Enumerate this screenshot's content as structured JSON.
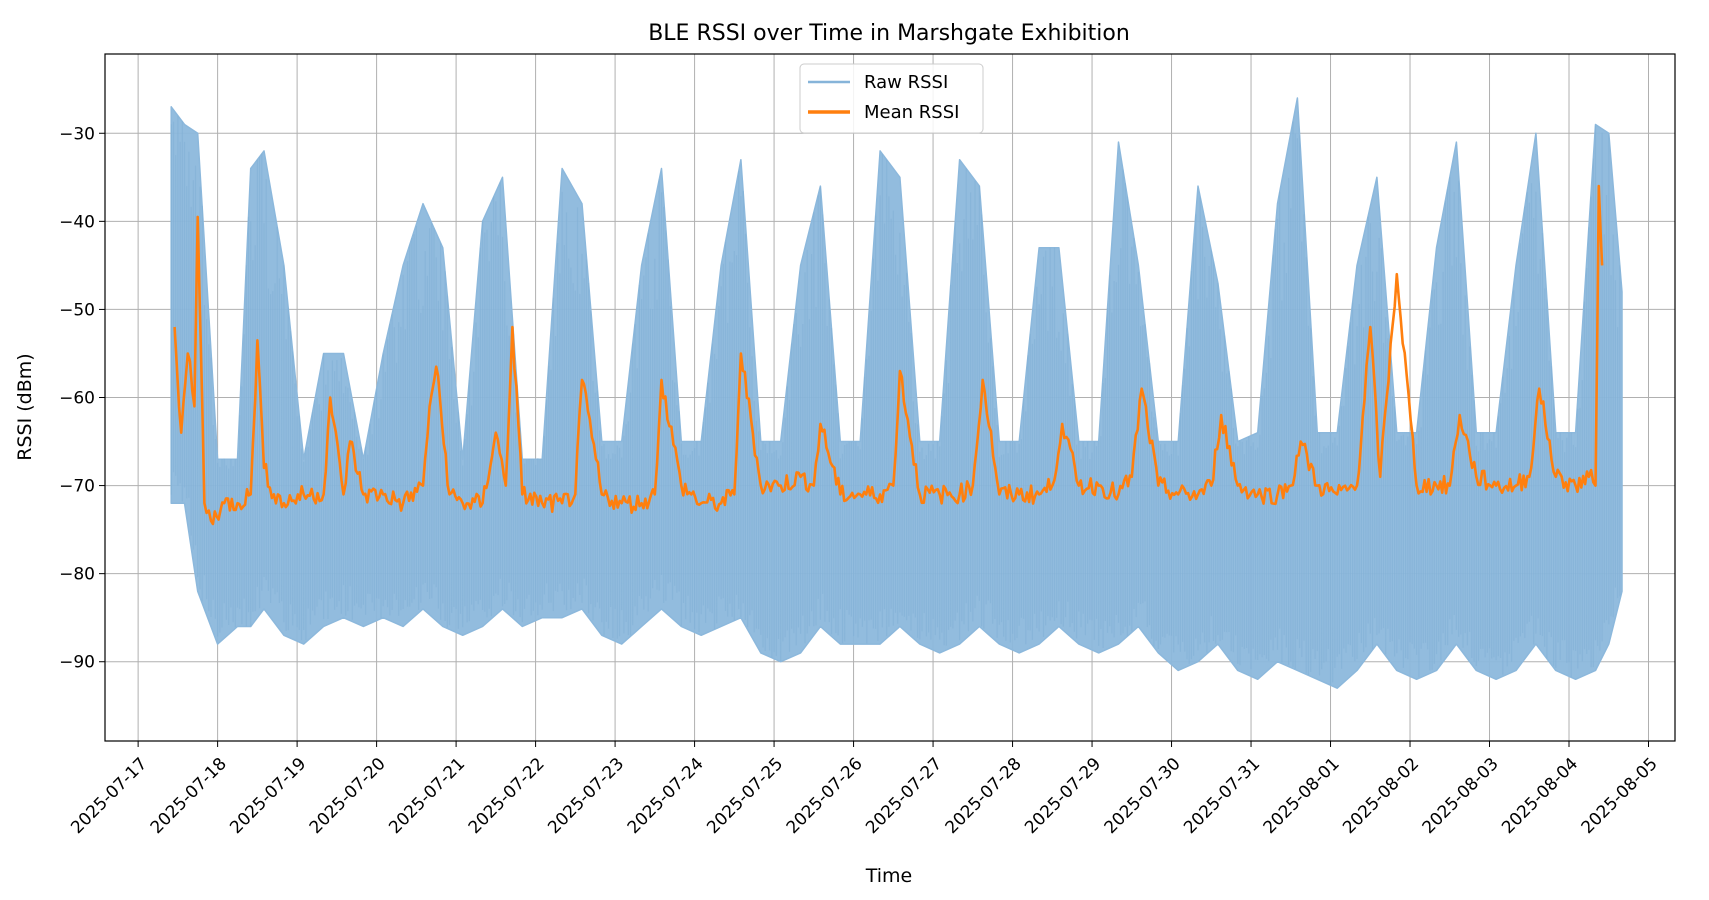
{
  "chart_data": {
    "type": "line",
    "title": "BLE RSSI over Time in Marshgate Exhibition",
    "xlabel": "Time",
    "ylabel": "RSSI (dBm)",
    "x_type": "date",
    "xlim": [
      "2025-07-16T14:00",
      "2025-08-05T08:00"
    ],
    "ylim": [
      -99,
      -21
    ],
    "x_ticks": [
      "2025-07-17",
      "2025-07-18",
      "2025-07-19",
      "2025-07-20",
      "2025-07-21",
      "2025-07-22",
      "2025-07-23",
      "2025-07-24",
      "2025-07-25",
      "2025-07-26",
      "2025-07-27",
      "2025-07-28",
      "2025-07-29",
      "2025-07-30",
      "2025-07-31",
      "2025-08-01",
      "2025-08-02",
      "2025-08-03",
      "2025-08-04",
      "2025-08-05"
    ],
    "y_ticks": [
      -90,
      -80,
      -70,
      -60,
      -50,
      -40,
      -30
    ],
    "y_tick_labels": [
      "−90",
      "−80",
      "−70",
      "−60",
      "−50",
      "−40",
      "−30"
    ],
    "grid": true,
    "legend": {
      "placement": "upper-center"
    },
    "series": [
      {
        "name": "Raw RSSI",
        "color": "#8cb8dc",
        "legend_color": "#86b4d9",
        "style": "envelope",
        "x": [
          "2025-07-17T10:00",
          "2025-07-17T14:00",
          "2025-07-17T18:00",
          "2025-07-18T00:00",
          "2025-07-18T06:00",
          "2025-07-18T10:00",
          "2025-07-18T14:00",
          "2025-07-18T20:00",
          "2025-07-19T02:00",
          "2025-07-19T08:00",
          "2025-07-19T14:00",
          "2025-07-19T20:00",
          "2025-07-20T02:00",
          "2025-07-20T08:00",
          "2025-07-20T14:00",
          "2025-07-20T20:00",
          "2025-07-21T02:00",
          "2025-07-21T08:00",
          "2025-07-21T14:00",
          "2025-07-21T20:00",
          "2025-07-22T02:00",
          "2025-07-22T08:00",
          "2025-07-22T14:00",
          "2025-07-22T20:00",
          "2025-07-23T02:00",
          "2025-07-23T08:00",
          "2025-07-23T14:00",
          "2025-07-23T20:00",
          "2025-07-24T02:00",
          "2025-07-24T08:00",
          "2025-07-24T14:00",
          "2025-07-24T20:00",
          "2025-07-25T02:00",
          "2025-07-25T08:00",
          "2025-07-25T14:00",
          "2025-07-25T20:00",
          "2025-07-26T02:00",
          "2025-07-26T08:00",
          "2025-07-26T14:00",
          "2025-07-26T20:00",
          "2025-07-27T02:00",
          "2025-07-27T08:00",
          "2025-07-27T14:00",
          "2025-07-27T20:00",
          "2025-07-28T02:00",
          "2025-07-28T08:00",
          "2025-07-28T14:00",
          "2025-07-28T20:00",
          "2025-07-29T02:00",
          "2025-07-29T08:00",
          "2025-07-29T14:00",
          "2025-07-29T20:00",
          "2025-07-30T02:00",
          "2025-07-30T08:00",
          "2025-07-30T14:00",
          "2025-07-30T20:00",
          "2025-07-31T02:00",
          "2025-07-31T08:00",
          "2025-07-31T14:00",
          "2025-07-31T20:00",
          "2025-08-01T02:00",
          "2025-08-01T08:00",
          "2025-08-01T14:00",
          "2025-08-01T20:00",
          "2025-08-02T02:00",
          "2025-08-02T08:00",
          "2025-08-02T14:00",
          "2025-08-02T20:00",
          "2025-08-03T02:00",
          "2025-08-03T08:00",
          "2025-08-03T14:00",
          "2025-08-03T20:00",
          "2025-08-04T02:00",
          "2025-08-04T08:00",
          "2025-08-04T12:00",
          "2025-08-04T16:00"
        ],
        "upper": [
          -27,
          -29,
          -30,
          -67,
          -67,
          -34,
          -32,
          -45,
          -67,
          -55,
          -55,
          -67,
          -55,
          -45,
          -38,
          -43,
          -67,
          -40,
          -35,
          -67,
          -67,
          -34,
          -38,
          -65,
          -65,
          -45,
          -34,
          -65,
          -65,
          -45,
          -33,
          -65,
          -65,
          -45,
          -36,
          -65,
          -65,
          -32,
          -35,
          -65,
          -65,
          -33,
          -36,
          -65,
          -65,
          -43,
          -43,
          -65,
          -65,
          -31,
          -45,
          -65,
          -65,
          -36,
          -47,
          -65,
          -64,
          -38,
          -26,
          -64,
          -64,
          -45,
          -35,
          -64,
          -64,
          -43,
          -31,
          -64,
          -64,
          -45,
          -30,
          -64,
          -64,
          -29,
          -30,
          -48
        ],
        "lower": [
          -72,
          -72,
          -82,
          -88,
          -86,
          -86,
          -84,
          -87,
          -88,
          -86,
          -85,
          -86,
          -85,
          -86,
          -84,
          -86,
          -87,
          -86,
          -84,
          -86,
          -85,
          -85,
          -84,
          -87,
          -88,
          -86,
          -84,
          -86,
          -87,
          -86,
          -85,
          -89,
          -90,
          -89,
          -86,
          -88,
          -88,
          -88,
          -86,
          -88,
          -89,
          -88,
          -86,
          -88,
          -89,
          -88,
          -86,
          -88,
          -89,
          -88,
          -86,
          -89,
          -91,
          -90,
          -88,
          -91,
          -92,
          -90,
          -91,
          -92,
          -93,
          -91,
          -88,
          -91,
          -92,
          -91,
          -88,
          -91,
          -92,
          -91,
          -88,
          -91,
          -92,
          -91,
          -88,
          -82
        ]
      },
      {
        "name": "Mean RSSI",
        "color": "#ff7f0e",
        "style": "line",
        "x": [
          "2025-07-17T11:00",
          "2025-07-17T13:00",
          "2025-07-17T15:00",
          "2025-07-17T17:00",
          "2025-07-17T18:00",
          "2025-07-17T20:00",
          "2025-07-17T22:00",
          "2025-07-18T02:00",
          "2025-07-18T06:00",
          "2025-07-18T10:00",
          "2025-07-18T12:00",
          "2025-07-18T14:00",
          "2025-07-18T17:00",
          "2025-07-18T20:00",
          "2025-07-19T02:00",
          "2025-07-19T08:00",
          "2025-07-19T10:00",
          "2025-07-19T14:00",
          "2025-07-19T16:00",
          "2025-07-19T20:00",
          "2025-07-20T02:00",
          "2025-07-20T08:00",
          "2025-07-20T14:00",
          "2025-07-20T16:00",
          "2025-07-20T18:00",
          "2025-07-20T22:00",
          "2025-07-21T02:00",
          "2025-07-21T08:00",
          "2025-07-21T12:00",
          "2025-07-21T15:00",
          "2025-07-21T17:00",
          "2025-07-21T20:00",
          "2025-07-22T02:00",
          "2025-07-22T08:00",
          "2025-07-22T12:00",
          "2025-07-22T14:00",
          "2025-07-22T20:00",
          "2025-07-23T02:00",
          "2025-07-23T08:00",
          "2025-07-23T12:00",
          "2025-07-23T14:00",
          "2025-07-23T20:00",
          "2025-07-24T02:00",
          "2025-07-24T08:00",
          "2025-07-24T12:00",
          "2025-07-24T14:00",
          "2025-07-24T20:00",
          "2025-07-25T02:00",
          "2025-07-25T08:00",
          "2025-07-25T12:00",
          "2025-07-25T14:00",
          "2025-07-25T20:00",
          "2025-07-26T02:00",
          "2025-07-26T08:00",
          "2025-07-26T12:00",
          "2025-07-26T14:00",
          "2025-07-26T20:00",
          "2025-07-27T02:00",
          "2025-07-27T08:00",
          "2025-07-27T12:00",
          "2025-07-27T15:00",
          "2025-07-27T20:00",
          "2025-07-28T02:00",
          "2025-07-28T08:00",
          "2025-07-28T12:00",
          "2025-07-28T15:00",
          "2025-07-28T20:00",
          "2025-07-29T02:00",
          "2025-07-29T08:00",
          "2025-07-29T12:00",
          "2025-07-29T15:00",
          "2025-07-29T20:00",
          "2025-07-30T02:00",
          "2025-07-30T08:00",
          "2025-07-30T12:00",
          "2025-07-30T15:00",
          "2025-07-30T20:00",
          "2025-07-31T02:00",
          "2025-07-31T08:00",
          "2025-07-31T12:00",
          "2025-07-31T15:00",
          "2025-07-31T20:00",
          "2025-08-01T02:00",
          "2025-08-01T08:00",
          "2025-08-01T12:00",
          "2025-08-01T15:00",
          "2025-08-01T20:00",
          "2025-08-02T02:00",
          "2025-08-02T08:00",
          "2025-08-02T12:00",
          "2025-08-02T15:00",
          "2025-08-02T20:00",
          "2025-08-03T02:00",
          "2025-08-03T08:00",
          "2025-08-03T12:00",
          "2025-08-03T15:00",
          "2025-08-03T20:00",
          "2025-08-04T02:00",
          "2025-08-04T06:00",
          "2025-08-04T08:00",
          "2025-08-04T09:00",
          "2025-08-04T10:00"
        ],
        "y": [
          -52,
          -64,
          -55,
          -61,
          -39.5,
          -72,
          -74,
          -72,
          -72,
          -71,
          -53.5,
          -68,
          -71,
          -72,
          -71,
          -71,
          -60,
          -71,
          -65,
          -71,
          -71,
          -72,
          -70,
          -61,
          -56.5,
          -71,
          -72,
          -72,
          -64,
          -70,
          -52,
          -71,
          -72,
          -72,
          -71,
          -58,
          -71,
          -72,
          -72,
          -71,
          -58,
          -70,
          -72,
          -72,
          -71,
          -55,
          -70,
          -70,
          -69,
          -70,
          -63,
          -71,
          -71,
          -71,
          -70,
          -57,
          -71,
          -71,
          -71,
          -70,
          -58,
          -71,
          -71,
          -71,
          -70,
          -63,
          -70,
          -70,
          -71,
          -69,
          -59,
          -70,
          -71,
          -71,
          -70,
          -62,
          -70,
          -71,
          -71,
          -70,
          -65,
          -70,
          -71,
          -70,
          -52,
          -69,
          -46,
          -70,
          -70,
          -70,
          -62,
          -69,
          -70,
          -70,
          -69,
          -59,
          -69,
          -70,
          -69,
          -70,
          -36,
          -45
        ]
      }
    ]
  }
}
